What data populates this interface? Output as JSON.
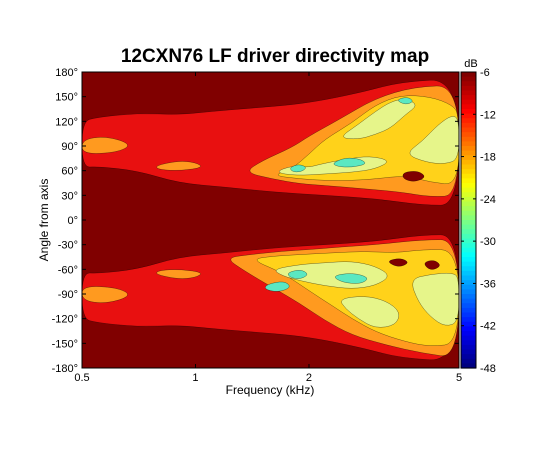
{
  "chart_data": {
    "type": "heatmap",
    "title": "12CXN76 LF driver directivity map",
    "xlabel": "Frequency (kHz)",
    "ylabel": "Angle from axis",
    "x_scale": "log",
    "xlim": [
      0.5,
      5
    ],
    "ylim": [
      -180,
      180
    ],
    "x_ticks": [
      0.5,
      1,
      2,
      5
    ],
    "x_tick_labels": [
      "0.5",
      "1",
      "2",
      "5"
    ],
    "y_ticks": [
      180,
      150,
      120,
      90,
      60,
      30,
      0,
      -30,
      -60,
      -90,
      -120,
      -150,
      -180
    ],
    "y_tick_labels": [
      "180°",
      "150°",
      "120°",
      "90°",
      "60°",
      "30°",
      "0°",
      "-30°",
      "-60°",
      "-90°",
      "-120°",
      "-150°",
      "-180°"
    ],
    "colorbar": {
      "label": "dB",
      "range": [
        -48,
        -6
      ],
      "ticks": [
        -6,
        -12,
        -18,
        -24,
        -30,
        -36,
        -42,
        -48
      ],
      "levels": [
        {
          "min": -9,
          "max": -6,
          "color": "#800000"
        },
        {
          "min": -12,
          "max": -9,
          "color": "#e81010"
        },
        {
          "min": -18,
          "max": -12,
          "color": "#ff9a1f"
        },
        {
          "min": -21,
          "max": -18,
          "color": "#ffd21a"
        },
        {
          "min": -24,
          "max": -21,
          "color": "#e6f58a"
        },
        {
          "min": -30,
          "max": -24,
          "color": "#5ae8c2"
        }
      ]
    },
    "contour_regions": [
      {
        "level": -12,
        "polygon": [
          [
            0.5,
            120
          ],
          [
            0.55,
            125
          ],
          [
            0.7,
            130
          ],
          [
            0.9,
            128
          ],
          [
            1.1,
            132
          ],
          [
            1.4,
            136
          ],
          [
            1.8,
            140
          ],
          [
            2.2,
            146
          ],
          [
            2.8,
            156
          ],
          [
            3.5,
            168
          ],
          [
            5,
            172
          ],
          [
            5,
            18
          ],
          [
            4,
            18
          ],
          [
            3,
            26
          ],
          [
            2.2,
            30
          ],
          [
            1.6,
            34
          ],
          [
            1.2,
            40
          ],
          [
            0.9,
            45
          ],
          [
            0.7,
            60
          ],
          [
            0.55,
            65
          ],
          [
            0.5,
            64
          ]
        ]
      },
      {
        "level": -12,
        "polygon": [
          [
            0.5,
            -64
          ],
          [
            0.55,
            -65
          ],
          [
            0.7,
            -60
          ],
          [
            0.9,
            -45
          ],
          [
            1.2,
            -40
          ],
          [
            1.6,
            -34
          ],
          [
            2.2,
            -30
          ],
          [
            3,
            -26
          ],
          [
            4,
            -18
          ],
          [
            5,
            -18
          ],
          [
            5,
            -172
          ],
          [
            3.5,
            -168
          ],
          [
            2.8,
            -156
          ],
          [
            2.2,
            -146
          ],
          [
            1.8,
            -140
          ],
          [
            1.4,
            -136
          ],
          [
            1.1,
            -132
          ],
          [
            0.9,
            -128
          ],
          [
            0.7,
            -130
          ],
          [
            0.55,
            -125
          ],
          [
            0.5,
            -120
          ]
        ]
      },
      {
        "level": -18,
        "polygon": [
          [
            0.5,
            98
          ],
          [
            0.58,
            102
          ],
          [
            0.68,
            92
          ],
          [
            0.62,
            82
          ],
          [
            0.5,
            80
          ]
        ]
      },
      {
        "level": -18,
        "polygon": [
          [
            0.78,
            66
          ],
          [
            0.9,
            72
          ],
          [
            1.0,
            70
          ],
          [
            1.05,
            64
          ],
          [
            0.92,
            60
          ],
          [
            0.8,
            61
          ]
        ]
      },
      {
        "level": -18,
        "polygon": [
          [
            1.5,
            72
          ],
          [
            1.8,
            88
          ],
          [
            2.0,
            102
          ],
          [
            2.4,
            122
          ],
          [
            3.0,
            148
          ],
          [
            3.8,
            162
          ],
          [
            5,
            164
          ],
          [
            5,
            30
          ],
          [
            4.2,
            28
          ],
          [
            3.5,
            34
          ],
          [
            2.8,
            38
          ],
          [
            2.2,
            42
          ],
          [
            1.9,
            44
          ],
          [
            1.6,
            50
          ],
          [
            1.35,
            58
          ]
        ]
      },
      {
        "level": -18,
        "polygon": [
          [
            0.5,
            -98
          ],
          [
            0.58,
            -102
          ],
          [
            0.68,
            -92
          ],
          [
            0.62,
            -82
          ],
          [
            0.5,
            -80
          ]
        ]
      },
      {
        "level": -18,
        "polygon": [
          [
            0.78,
            -66
          ],
          [
            0.9,
            -72
          ],
          [
            1.0,
            -70
          ],
          [
            1.05,
            -64
          ],
          [
            0.92,
            -60
          ],
          [
            0.8,
            -61
          ]
        ]
      },
      {
        "level": -18,
        "polygon": [
          [
            1.2,
            -46
          ],
          [
            1.4,
            -42
          ],
          [
            1.7,
            -38
          ],
          [
            2.0,
            -36
          ],
          [
            2.4,
            -33
          ],
          [
            3.0,
            -30
          ],
          [
            4.0,
            -24
          ],
          [
            5,
            -24
          ],
          [
            5,
            -168
          ],
          [
            4.0,
            -162
          ],
          [
            3.2,
            -152
          ],
          [
            2.6,
            -140
          ],
          [
            2.2,
            -122
          ],
          [
            1.9,
            -102
          ],
          [
            1.6,
            -82
          ],
          [
            1.35,
            -62
          ]
        ]
      },
      {
        "level": -21,
        "polygon": [
          [
            1.6,
            54
          ],
          [
            1.8,
            62
          ],
          [
            2.0,
            80
          ],
          [
            2.2,
            98
          ],
          [
            2.6,
            118
          ],
          [
            3.0,
            140
          ],
          [
            3.5,
            152
          ],
          [
            4.2,
            150
          ],
          [
            4.8,
            140
          ],
          [
            5,
            128
          ],
          [
            5,
            42
          ],
          [
            4.2,
            46
          ],
          [
            3.6,
            54
          ],
          [
            3.0,
            50
          ],
          [
            2.6,
            48
          ],
          [
            2.2,
            48
          ],
          [
            1.9,
            50
          ]
        ]
      },
      {
        "level": -21,
        "polygon": [
          [
            1.4,
            -48
          ],
          [
            1.6,
            -44
          ],
          [
            1.9,
            -42
          ],
          [
            2.3,
            -40
          ],
          [
            2.8,
            -38
          ],
          [
            3.4,
            -40
          ],
          [
            4.0,
            -36
          ],
          [
            5,
            -36
          ],
          [
            5,
            -150
          ],
          [
            4.2,
            -154
          ],
          [
            3.6,
            -148
          ],
          [
            3.0,
            -136
          ],
          [
            2.6,
            -120
          ],
          [
            2.3,
            -104
          ],
          [
            2.0,
            -86
          ],
          [
            1.7,
            -64
          ]
        ]
      },
      {
        "level": -24,
        "polygon": [
          [
            1.62,
            58
          ],
          [
            1.8,
            66
          ],
          [
            2.0,
            64
          ],
          [
            2.15,
            68
          ],
          [
            2.5,
            74
          ],
          [
            2.9,
            78
          ],
          [
            3.3,
            72
          ],
          [
            3.0,
            62
          ],
          [
            2.6,
            58
          ],
          [
            2.2,
            56
          ],
          [
            1.85,
            54
          ]
        ]
      },
      {
        "level": -24,
        "polygon": [
          [
            2.4,
            100
          ],
          [
            2.7,
            116
          ],
          [
            3.0,
            132
          ],
          [
            3.3,
            144
          ],
          [
            3.6,
            148
          ],
          [
            3.9,
            140
          ],
          [
            3.6,
            128
          ],
          [
            3.3,
            112
          ],
          [
            3.0,
            104
          ],
          [
            2.7,
            98
          ]
        ]
      },
      {
        "level": -24,
        "polygon": [
          [
            3.6,
            80
          ],
          [
            4.0,
            96
          ],
          [
            4.4,
            116
          ],
          [
            4.8,
            128
          ],
          [
            5,
            122
          ],
          [
            5,
            74
          ],
          [
            4.6,
            68
          ],
          [
            4.1,
            70
          ]
        ]
      },
      {
        "level": -24,
        "polygon": [
          [
            1.6,
            -60
          ],
          [
            1.9,
            -54
          ],
          [
            2.2,
            -52
          ],
          [
            2.6,
            -50
          ],
          [
            3.0,
            -56
          ],
          [
            3.3,
            -68
          ],
          [
            3.0,
            -80
          ],
          [
            2.6,
            -84
          ],
          [
            2.2,
            -80
          ],
          [
            1.9,
            -74
          ],
          [
            1.7,
            -68
          ]
        ]
      },
      {
        "level": -24,
        "polygon": [
          [
            2.4,
            -96
          ],
          [
            2.8,
            -92
          ],
          [
            3.2,
            -98
          ],
          [
            3.5,
            -112
          ],
          [
            3.4,
            -128
          ],
          [
            3.0,
            -132
          ],
          [
            2.7,
            -120
          ],
          [
            2.5,
            -108
          ]
        ]
      },
      {
        "level": -24,
        "polygon": [
          [
            3.7,
            -72
          ],
          [
            4.2,
            -66
          ],
          [
            4.8,
            -64
          ],
          [
            5,
            -70
          ],
          [
            5,
            -124
          ],
          [
            4.6,
            -130
          ],
          [
            4.2,
            -118
          ],
          [
            3.9,
            -100
          ]
        ]
      },
      {
        "level": -30,
        "polygon": [
          [
            1.78,
            64
          ],
          [
            1.88,
            68
          ],
          [
            1.98,
            64
          ],
          [
            1.9,
            58
          ],
          [
            1.8,
            59
          ]
        ]
      },
      {
        "level": -30,
        "polygon": [
          [
            2.3,
            69
          ],
          [
            2.5,
            76
          ],
          [
            2.75,
            74
          ],
          [
            2.85,
            68
          ],
          [
            2.6,
            64
          ],
          [
            2.38,
            65
          ]
        ]
      },
      {
        "level": -30,
        "polygon": [
          [
            3.4,
            146
          ],
          [
            3.65,
            150
          ],
          [
            3.8,
            144
          ],
          [
            3.6,
            140
          ]
        ]
      },
      {
        "level": -30,
        "polygon": [
          [
            1.75,
            -64
          ],
          [
            1.9,
            -60
          ],
          [
            2.0,
            -66
          ],
          [
            1.9,
            -72
          ],
          [
            1.78,
            -70
          ]
        ]
      },
      {
        "level": -30,
        "polygon": [
          [
            2.3,
            -68
          ],
          [
            2.6,
            -64
          ],
          [
            2.9,
            -70
          ],
          [
            2.75,
            -78
          ],
          [
            2.45,
            -76
          ]
        ]
      },
      {
        "level": -30,
        "polygon": [
          [
            1.55,
            -78
          ],
          [
            1.72,
            -74
          ],
          [
            1.8,
            -82
          ],
          [
            1.65,
            -88
          ],
          [
            1.52,
            -84
          ]
        ]
      },
      {
        "level": -9,
        "polygon": [
          [
            3.55,
            58
          ],
          [
            3.9,
            60
          ],
          [
            4.1,
            52
          ],
          [
            3.8,
            46
          ],
          [
            3.55,
            50
          ]
        ]
      },
      {
        "level": -9,
        "polygon": [
          [
            3.2,
            -50
          ],
          [
            3.5,
            -46
          ],
          [
            3.7,
            -52
          ],
          [
            3.45,
            -58
          ]
        ]
      },
      {
        "level": -9,
        "polygon": [
          [
            4.0,
            -52
          ],
          [
            4.3,
            -48
          ],
          [
            4.5,
            -56
          ],
          [
            4.2,
            -62
          ]
        ]
      }
    ]
  }
}
